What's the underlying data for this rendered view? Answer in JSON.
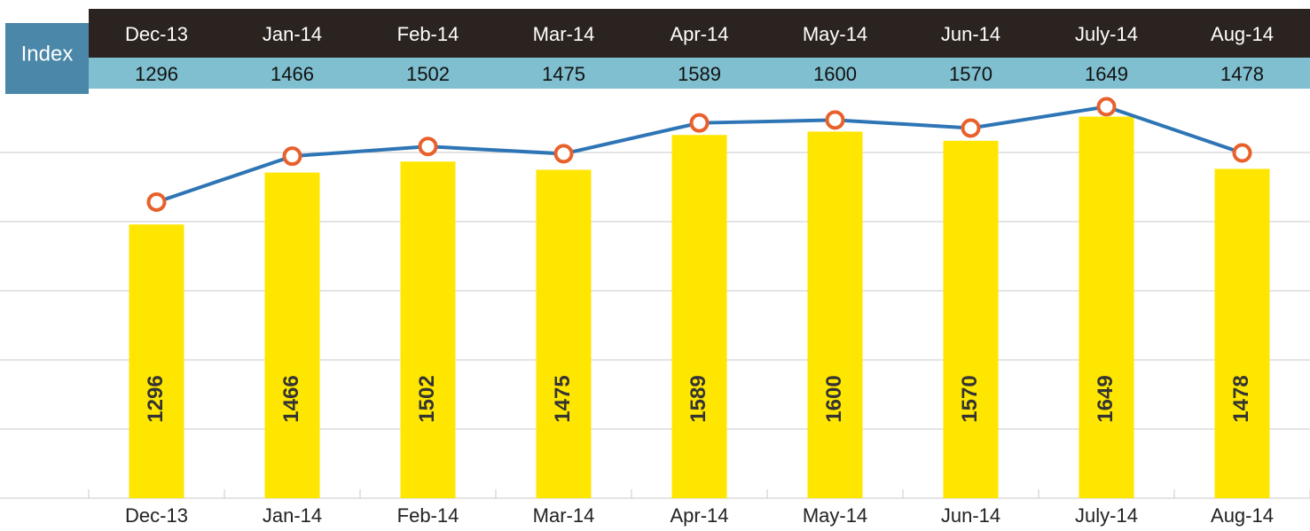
{
  "chart_data": {
    "type": "bar_line",
    "table_label": "Index",
    "categories": [
      "Dec-13",
      "Jan-14",
      "Feb-14",
      "Mar-14",
      "Apr-14",
      "May-14",
      "Jun-14",
      "July-14",
      "Aug-14"
    ],
    "series": [
      {
        "name": "Index",
        "type": "bar",
        "color": "#ffe600",
        "values": [
          1296,
          1466,
          1502,
          1475,
          1589,
          1600,
          1570,
          1649,
          1478
        ]
      },
      {
        "name": "Index",
        "type": "line",
        "axis": "y2",
        "color": "#2e75b6",
        "marker_color": "#e8602c",
        "values": [
          1296,
          1466,
          1502,
          1475,
          1589,
          1600,
          1570,
          1649,
          1478
        ]
      }
    ],
    "ylim": [
      400,
      1700
    ],
    "y2lim": [
      200,
      1670
    ],
    "grid": true
  }
}
